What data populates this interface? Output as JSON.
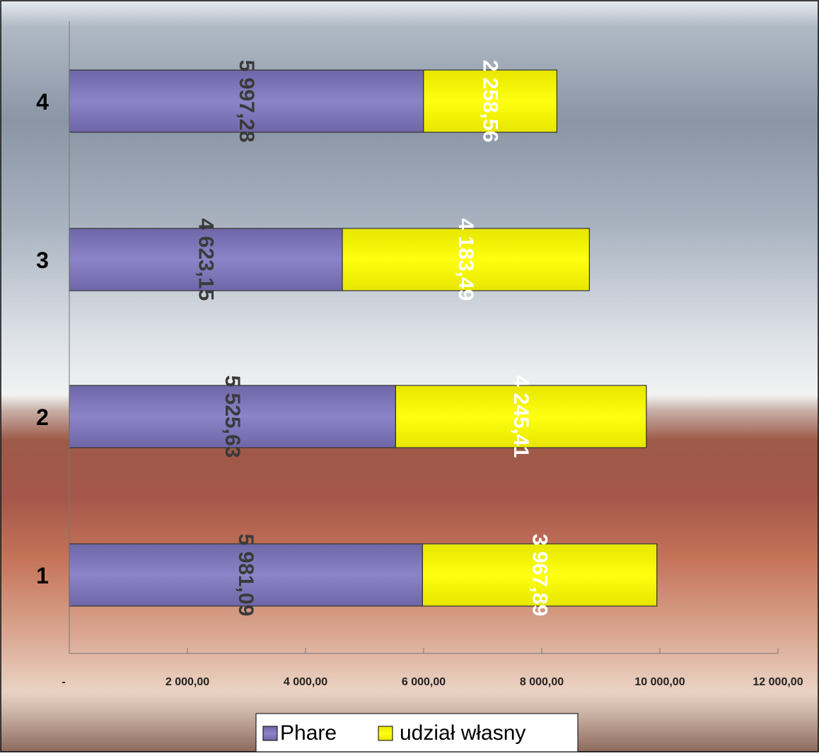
{
  "chart_data": {
    "type": "bar",
    "orientation": "horizontal",
    "stacked": true,
    "categories": [
      "1",
      "2",
      "3",
      "4"
    ],
    "series": [
      {
        "name": "Phare",
        "values": [
          5981.09,
          5525.63,
          4623.15,
          5997.28
        ],
        "labels": [
          "5 981,09",
          "5 525,63",
          "4 623,15",
          "5 997,28"
        ],
        "color": "#8a80c4"
      },
      {
        "name": "udział własny",
        "values": [
          3967.89,
          4245.41,
          4183.49,
          2258.56
        ],
        "labels": [
          "3 967,89",
          "4 245,41",
          "4 183,49",
          "2 258,56"
        ],
        "color": "#ffff00"
      }
    ],
    "x_ticks": [
      0,
      2000,
      4000,
      6000,
      8000,
      10000,
      12000
    ],
    "x_tick_labels": [
      "-",
      "2 000,00",
      "4 000,00",
      "6 000,00",
      "8 000,00",
      "10 000,00",
      "12 000,00"
    ],
    "xlim": [
      0,
      12000
    ],
    "title": "",
    "xlabel": "",
    "ylabel": "",
    "legend_position": "bottom",
    "grid": false,
    "colors": {
      "phare_label": "#3a3a3a",
      "own_label": "#ffffff",
      "axis": "#777777"
    }
  }
}
